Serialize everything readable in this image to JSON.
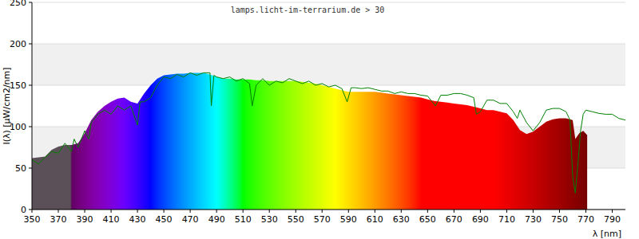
{
  "chart_data": {
    "type": "area",
    "title": "lamps.licht-im-terrarium.de > 30",
    "x_label": "λ [nm]",
    "y_label": "I(λ) [µW/cm2/nm]",
    "xlim": [
      350,
      800
    ],
    "ylim": [
      0,
      250
    ],
    "xticks": [
      350,
      370,
      390,
      410,
      430,
      450,
      470,
      490,
      510,
      530,
      550,
      570,
      590,
      610,
      630,
      650,
      670,
      690,
      710,
      730,
      750,
      770,
      790
    ],
    "yticks": [
      0,
      50,
      100,
      150,
      200,
      250
    ],
    "grid": true,
    "series": [
      {
        "type": "area",
        "x": [
          350,
          355,
          360,
          365,
          370,
          375,
          380,
          385,
          390,
          395,
          400,
          405,
          410,
          415,
          420,
          425,
          430,
          435,
          440,
          445,
          450,
          455,
          460,
          465,
          470,
          475,
          480,
          485,
          490,
          495,
          500,
          505,
          510,
          515,
          520,
          525,
          530,
          535,
          540,
          545,
          550,
          555,
          560,
          565,
          570,
          575,
          580,
          585,
          590,
          595,
          600,
          605,
          610,
          615,
          620,
          625,
          630,
          635,
          640,
          645,
          650,
          655,
          660,
          665,
          670,
          675,
          680,
          685,
          690,
          695,
          700,
          705,
          710,
          715,
          720,
          725,
          730,
          735,
          740,
          745,
          750,
          755,
          760,
          762,
          765,
          768,
          771
        ],
        "values": [
          62,
          63,
          64,
          72,
          76,
          78,
          78,
          80,
          92,
          108,
          118,
          125,
          130,
          134,
          135,
          130,
          128,
          140,
          150,
          158,
          162,
          163,
          164,
          164,
          165,
          165,
          165,
          163,
          160,
          158,
          158,
          157,
          157,
          157,
          156,
          156,
          155,
          155,
          155,
          155,
          155,
          154,
          153,
          152,
          150,
          148,
          146,
          144,
          142,
          142,
          142,
          142,
          142,
          141,
          140,
          139,
          138,
          137,
          136,
          135,
          133,
          131,
          130,
          129,
          128,
          127,
          126,
          124,
          122,
          120,
          120,
          118,
          116,
          108,
          96,
          91,
          94,
          100,
          106,
          109,
          110,
          110,
          108,
          85,
          92,
          95,
          90
        ]
      },
      {
        "type": "line",
        "color": "#008000",
        "x": [
          350,
          355,
          360,
          365,
          370,
          375,
          380,
          382,
          385,
          390,
          393,
          395,
          400,
          405,
          410,
          415,
          420,
          425,
          430,
          432,
          435,
          440,
          445,
          450,
          455,
          460,
          465,
          470,
          475,
          480,
          485,
          486,
          488,
          490,
          495,
          500,
          505,
          510,
          515,
          517,
          520,
          525,
          530,
          535,
          540,
          545,
          550,
          555,
          560,
          565,
          570,
          575,
          580,
          585,
          589,
          592,
          595,
          600,
          605,
          610,
          615,
          620,
          625,
          630,
          635,
          640,
          645,
          650,
          656,
          660,
          665,
          670,
          675,
          680,
          685,
          687,
          690,
          695,
          700,
          705,
          710,
          715,
          718,
          720,
          725,
          730,
          735,
          740,
          745,
          750,
          755,
          758,
          760,
          762,
          764,
          766,
          768,
          770,
          775,
          780,
          785,
          790,
          795,
          800
        ],
        "values": [
          60,
          55,
          63,
          70,
          68,
          80,
          70,
          85,
          75,
          95,
          85,
          105,
          115,
          120,
          115,
          125,
          120,
          125,
          102,
          130,
          130,
          135,
          150,
          160,
          158,
          163,
          160,
          165,
          162,
          165,
          165,
          125,
          162,
          160,
          158,
          160,
          155,
          158,
          152,
          125,
          150,
          158,
          150,
          155,
          153,
          158,
          155,
          152,
          155,
          150,
          152,
          148,
          150,
          146,
          130,
          147,
          147,
          146,
          147,
          145,
          143,
          143,
          140,
          142,
          140,
          140,
          138,
          137,
          125,
          138,
          138,
          140,
          140,
          138,
          135,
          115,
          118,
          132,
          132,
          128,
          128,
          118,
          110,
          120,
          105,
          95,
          105,
          120,
          122,
          122,
          118,
          108,
          40,
          20,
          55,
          95,
          115,
          120,
          118,
          116,
          115,
          115,
          110,
          108
        ]
      }
    ]
  }
}
